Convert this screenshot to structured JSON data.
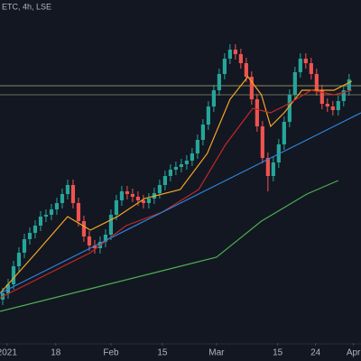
{
  "chart_data": {
    "type": "candlestick",
    "title": "ETC, 4h, LSE",
    "xlim": [
      -0.5,
      66.2
    ],
    "ylim": [
      0,
      380
    ],
    "xticks": [
      {
        "value": 0.8,
        "label": "2021"
      },
      {
        "value": 9.8,
        "label": "18"
      },
      {
        "value": 20,
        "label": "Feb"
      },
      {
        "value": 29.5,
        "label": "15"
      },
      {
        "value": 39.5,
        "label": "Mar"
      },
      {
        "value": 50.8,
        "label": "15"
      },
      {
        "value": 57.8,
        "label": "24"
      },
      {
        "value": 64.8,
        "label": "Apr"
      }
    ],
    "up_color": "#26a69a",
    "down_color": "#ef5350",
    "open": [
      48,
      55,
      65,
      85,
      100,
      115,
      122,
      130,
      140,
      142,
      148,
      155,
      165,
      175,
      155,
      135,
      118,
      108,
      105,
      112,
      120,
      142,
      158,
      168,
      165,
      162,
      158,
      155,
      160,
      166,
      175,
      185,
      192,
      195,
      198,
      202,
      210,
      225,
      242,
      262,
      280,
      298,
      315,
      325,
      320,
      310,
      295,
      270,
      240,
      205,
      185,
      200,
      220,
      245,
      275,
      300,
      315,
      310,
      298,
      280,
      265,
      262,
      258,
      268,
      280
    ],
    "high": [
      61,
      71,
      91,
      106,
      121,
      128,
      136,
      146,
      148,
      154,
      161,
      171,
      181,
      181,
      161,
      141,
      124,
      114,
      118,
      126,
      148,
      164,
      174,
      174,
      171,
      168,
      164,
      166,
      172,
      181,
      191,
      198,
      201,
      204,
      208,
      216,
      231,
      248,
      268,
      286,
      304,
      321,
      331,
      331,
      326,
      316,
      301,
      276,
      246,
      211,
      206,
      226,
      251,
      281,
      306,
      321,
      321,
      316,
      304,
      286,
      271,
      268,
      274,
      286,
      298
    ],
    "low": [
      42,
      49,
      59,
      79,
      94,
      109,
      116,
      124,
      134,
      136,
      142,
      149,
      159,
      149,
      129,
      112,
      102,
      99,
      99,
      106,
      114,
      136,
      152,
      159,
      156,
      152,
      149,
      149,
      154,
      160,
      169,
      179,
      186,
      189,
      192,
      196,
      204,
      219,
      236,
      256,
      274,
      292,
      309,
      314,
      304,
      289,
      264,
      234,
      199,
      168,
      179,
      194,
      214,
      239,
      269,
      294,
      304,
      292,
      274,
      259,
      256,
      252,
      252,
      262,
      274
    ],
    "close": [
      55,
      65,
      85,
      100,
      115,
      122,
      130,
      140,
      142,
      148,
      155,
      165,
      175,
      155,
      135,
      118,
      108,
      105,
      112,
      120,
      142,
      158,
      168,
      165,
      162,
      158,
      155,
      160,
      166,
      175,
      185,
      192,
      195,
      198,
      202,
      210,
      225,
      242,
      262,
      280,
      298,
      315,
      325,
      320,
      310,
      295,
      270,
      240,
      205,
      185,
      200,
      220,
      245,
      275,
      300,
      315,
      310,
      298,
      280,
      265,
      262,
      258,
      268,
      280,
      292
    ],
    "lines": [
      {
        "color": "#f5a623",
        "x": [
          -0.5,
          6.2,
          12,
          16.2,
          21.2,
          26.2,
          32.8,
          37.8,
          42,
          45.3,
          47.8,
          49.5,
          52,
          55.3,
          58.7,
          61.2,
          64.5
        ],
        "values": [
          55,
          100,
          140,
          125,
          140,
          160,
          170,
          210,
          270,
          295,
          275,
          240,
          255,
          280,
          280,
          280,
          290
        ]
      },
      {
        "color": "#c62828",
        "x": [
          -0.5,
          9.5,
          16.2,
          22.8,
          29.5,
          36.2,
          41.2,
          46.2,
          49.5,
          52.8,
          57,
          61.2,
          64.5
        ],
        "values": [
          50,
          80,
          100,
          130,
          145,
          170,
          220,
          260,
          255,
          265,
          280,
          275,
          280
        ]
      },
      {
        "color": "#4caf50",
        "x": [
          -0.5,
          9.5,
          19.5,
          29.5,
          39.5,
          47.8,
          56.2,
          62
        ],
        "values": [
          35,
          50,
          65,
          80,
          95,
          135,
          165,
          180
        ]
      },
      {
        "color": "#2e86de",
        "x": [
          -0.5,
          66.2
        ],
        "values": [
          55,
          255
        ]
      }
    ],
    "hlines": [
      {
        "value": 285,
        "color": "#8a8a5c"
      },
      {
        "value": 275,
        "color": "#6e6e52"
      }
    ]
  }
}
